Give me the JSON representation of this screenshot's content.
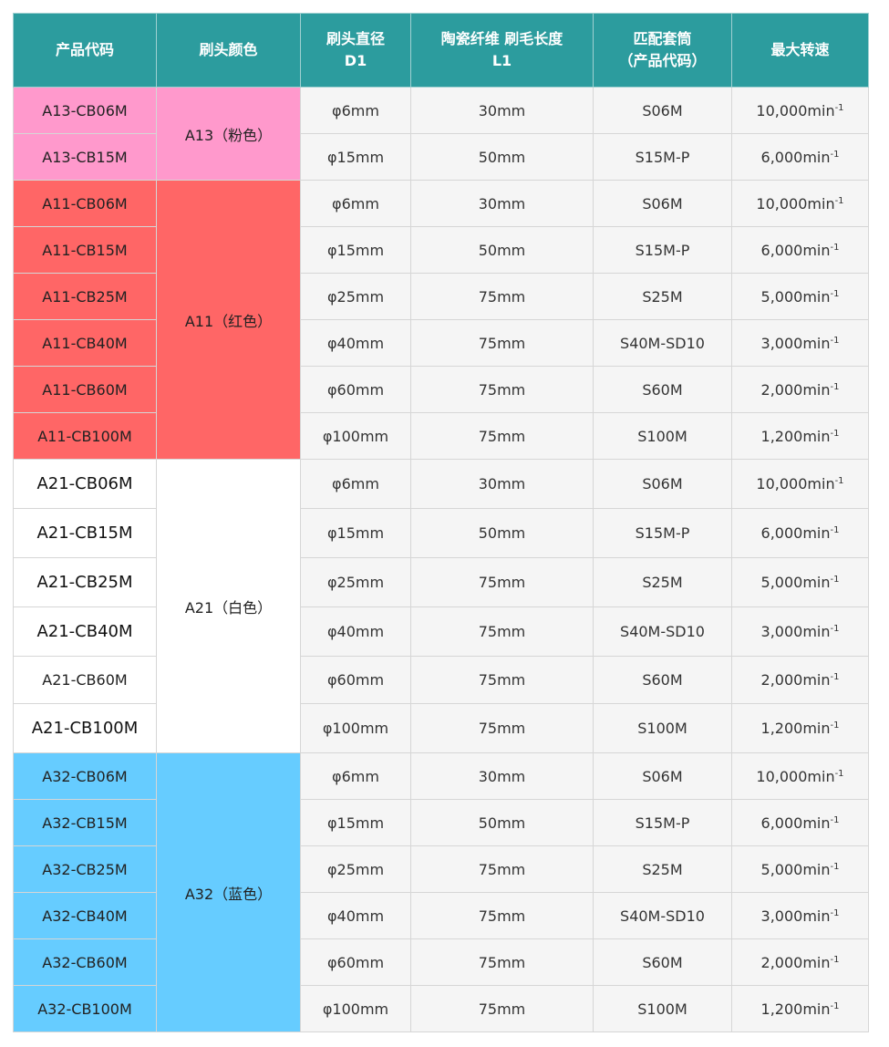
{
  "header": {
    "col1": "产品代码",
    "col2": "刷头颜色",
    "col3_line1": "刷头直径",
    "col3_line2": "D1",
    "col4_line1": "陶瓷纤维 刷毛长度",
    "col4_line2": "L1",
    "col5_line1": "匹配套筒",
    "col5_line2": "（产品代码）",
    "col6": "最大转速"
  },
  "speed_unit": "min",
  "speed_exp": "-1",
  "groups": [
    {
      "color_label": "A13（粉色）",
      "bg": "#ff99cc",
      "rows": [
        {
          "code": "A13-CB06M",
          "diameter": "φ6mm",
          "length": "30mm",
          "sleeve": "S06M",
          "speed": "10,000"
        },
        {
          "code": "A13-CB15M",
          "diameter": "φ15mm",
          "length": "50mm",
          "sleeve": "S15M-P",
          "speed": "6,000"
        }
      ]
    },
    {
      "color_label": "A11（红色）",
      "bg": "#ff6666",
      "rows": [
        {
          "code": "A11-CB06M",
          "diameter": "φ6mm",
          "length": "30mm",
          "sleeve": "S06M",
          "speed": "10,000"
        },
        {
          "code": "A11-CB15M",
          "diameter": "φ15mm",
          "length": "50mm",
          "sleeve": "S15M-P",
          "speed": "6,000"
        },
        {
          "code": "A11-CB25M",
          "diameter": "φ25mm",
          "length": "75mm",
          "sleeve": "S25M",
          "speed": "5,000"
        },
        {
          "code": "A11-CB40M",
          "diameter": "φ40mm",
          "length": "75mm",
          "sleeve": "S40M-SD10",
          "speed": "3,000"
        },
        {
          "code": "A11-CB60M",
          "diameter": "φ60mm",
          "length": "75mm",
          "sleeve": "S60M",
          "speed": "2,000"
        },
        {
          "code": "A11-CB100M",
          "diameter": "φ100mm",
          "length": "75mm",
          "sleeve": "S100M",
          "speed": "1,200"
        }
      ]
    },
    {
      "color_label": "A21（白色）",
      "bg": "#ffffff",
      "rows": [
        {
          "code": "A21-CB06M",
          "diameter": "φ6mm",
          "length": "30mm",
          "sleeve": "S06M",
          "speed": "10,000",
          "big": true
        },
        {
          "code": "A21-CB15M",
          "diameter": "φ15mm",
          "length": "50mm",
          "sleeve": "S15M-P",
          "speed": "6,000",
          "big": true
        },
        {
          "code": "A21-CB25M",
          "diameter": "φ25mm",
          "length": "75mm",
          "sleeve": "S25M",
          "speed": "5,000",
          "big": true
        },
        {
          "code": "A21-CB40M",
          "diameter": "φ40mm",
          "length": "75mm",
          "sleeve": "S40M-SD10",
          "speed": "3,000",
          "big": true
        },
        {
          "code": "A21-CB60M",
          "diameter": "φ60mm",
          "length": "75mm",
          "sleeve": "S60M",
          "speed": "2,000"
        },
        {
          "code": "A21-CB100M",
          "diameter": "φ100mm",
          "length": "75mm",
          "sleeve": "S100M",
          "speed": "1,200",
          "big": true
        }
      ]
    },
    {
      "color_label": "A32（蓝色）",
      "bg": "#66ccff",
      "rows": [
        {
          "code": "A32-CB06M",
          "diameter": "φ6mm",
          "length": "30mm",
          "sleeve": "S06M",
          "speed": "10,000"
        },
        {
          "code": "A32-CB15M",
          "diameter": "φ15mm",
          "length": "50mm",
          "sleeve": "S15M-P",
          "speed": "6,000"
        },
        {
          "code": "A32-CB25M",
          "diameter": "φ25mm",
          "length": "75mm",
          "sleeve": "S25M",
          "speed": "5,000"
        },
        {
          "code": "A32-CB40M",
          "diameter": "φ40mm",
          "length": "75mm",
          "sleeve": "S40M-SD10",
          "speed": "3,000"
        },
        {
          "code": "A32-CB60M",
          "diameter": "φ60mm",
          "length": "75mm",
          "sleeve": "S60M",
          "speed": "2,000"
        },
        {
          "code": "A32-CB100M",
          "diameter": "φ100mm",
          "length": "75mm",
          "sleeve": "S100M",
          "speed": "1,200"
        }
      ]
    }
  ]
}
